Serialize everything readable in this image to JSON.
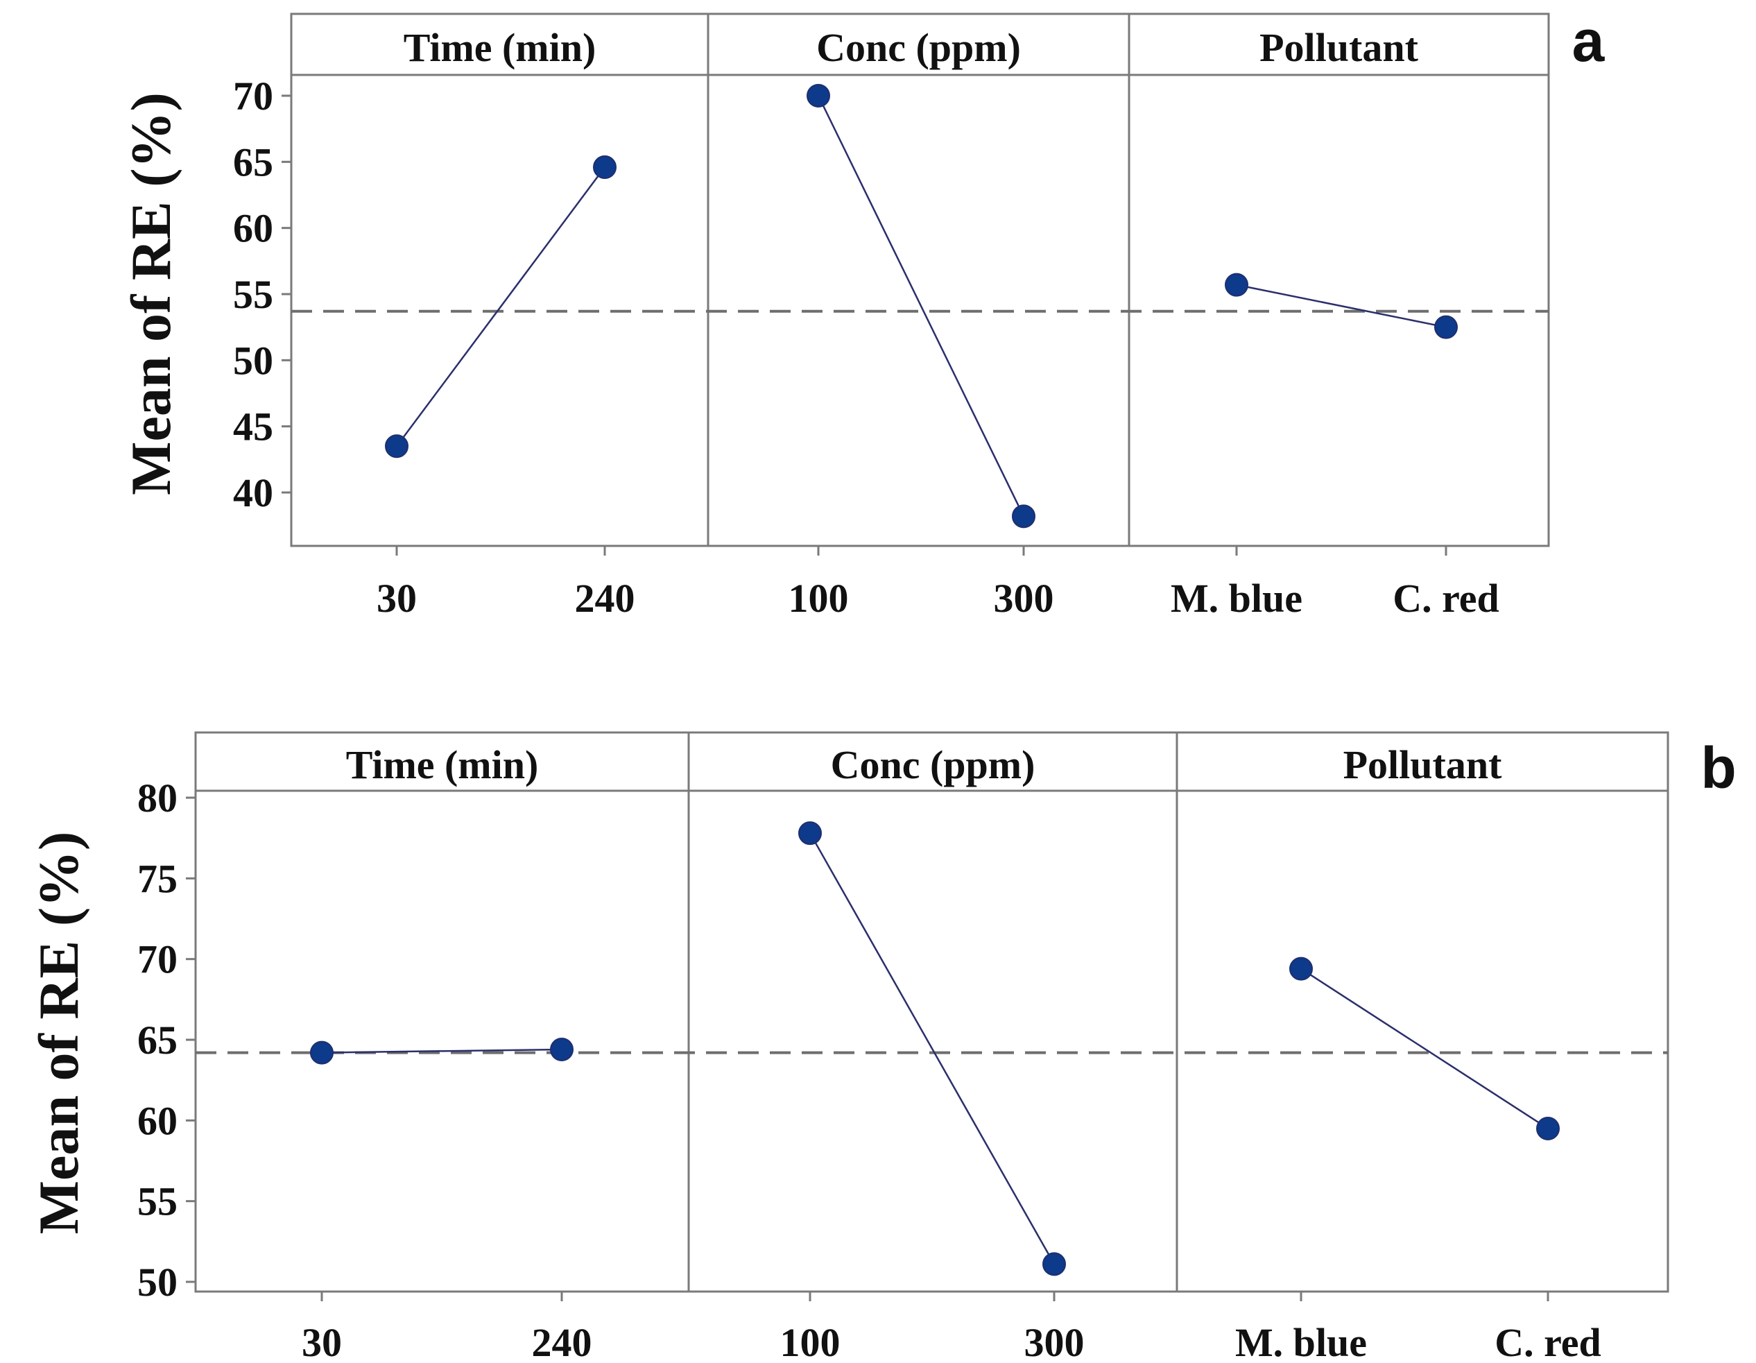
{
  "figure": {
    "panels": [
      {
        "letter": "a"
      },
      {
        "letter": "b"
      }
    ]
  },
  "colors": {
    "marker": "#0d3a8a",
    "marker_stroke": "#1f2f6e",
    "line": "#2b2f6b",
    "frame": "#7a7a7a",
    "reference_line": "#6e6e6e"
  },
  "chart_data": [
    {
      "type": "line",
      "panel": "a",
      "ylabel": "Mean of RE (%)",
      "ylim": [
        37.5,
        71.5
      ],
      "yticks": [
        40,
        45,
        50,
        55,
        60,
        65,
        70
      ],
      "reference_mean": 53.7,
      "factors": [
        {
          "name": "Time (min)",
          "levels": [
            "30",
            "240"
          ],
          "values": [
            43.5,
            64.6
          ]
        },
        {
          "name": "Conc (ppm)",
          "levels": [
            "100",
            "300"
          ],
          "values": [
            70.0,
            38.2
          ]
        },
        {
          "name": "Pollutant",
          "levels": [
            "M. blue",
            "C. red"
          ],
          "values": [
            55.7,
            52.5
          ]
        }
      ]
    },
    {
      "type": "line",
      "panel": "b",
      "ylabel": "Mean of RE (%)",
      "ylim": [
        50,
        80
      ],
      "yticks": [
        50,
        55,
        60,
        65,
        70,
        75,
        80
      ],
      "reference_mean": 64.2,
      "factors": [
        {
          "name": "Time (min)",
          "levels": [
            "30",
            "240"
          ],
          "values": [
            64.2,
            64.4
          ]
        },
        {
          "name": "Conc (ppm)",
          "levels": [
            "100",
            "300"
          ],
          "values": [
            77.8,
            51.1
          ]
        },
        {
          "name": "Pollutant",
          "levels": [
            "M. blue",
            "C. red"
          ],
          "values": [
            69.4,
            59.5
          ]
        }
      ]
    }
  ]
}
